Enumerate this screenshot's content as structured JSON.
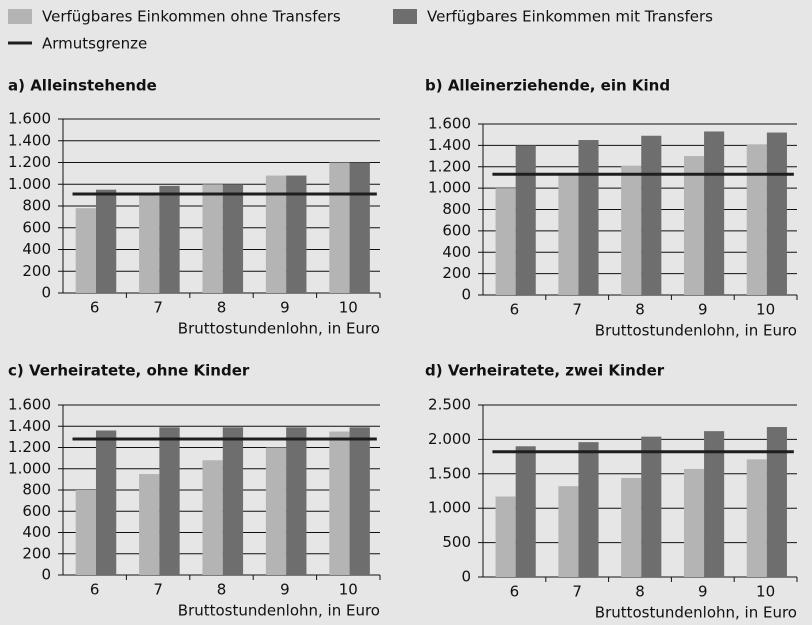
{
  "legend": [
    {
      "name": "Verfügbares Einkommen ohne Transfers",
      "color": "#b4b4b4"
    },
    {
      "name": "Verfügbares Einkommen mit Transfers",
      "color": "#6e6e6f"
    },
    {
      "name": "Armutsgrenze",
      "color": "#1e1e1e"
    }
  ],
  "chart_data": [
    {
      "type": "bar",
      "title": "a) Alleinstehende",
      "categories": [
        "6",
        "7",
        "8",
        "9",
        "10"
      ],
      "series": [
        {
          "color": "#b4b4b4",
          "values": [
            780,
            920,
            1000,
            1080,
            1200
          ]
        },
        {
          "color": "#6e6e6f",
          "values": [
            950,
            985,
            1000,
            1080,
            1200
          ]
        }
      ],
      "hline": 910,
      "hline_color": "#1e1e1e",
      "xlabel": "Bruttostundenlohn, in Euro",
      "ylim": [
        0,
        1600
      ],
      "yticks": [
        0,
        200,
        400,
        600,
        800,
        {
          "value": 1000,
          "label": "1.000"
        },
        {
          "value": 1200,
          "label": "1.200"
        },
        {
          "value": 1400,
          "label": "1.400"
        },
        {
          "value": 1600,
          "label": "1.600"
        }
      ],
      "grid": true
    },
    {
      "type": "bar",
      "title": "b) Alleinerziehende, ein Kind",
      "categories": [
        "6",
        "7",
        "8",
        "9",
        "10"
      ],
      "series": [
        {
          "color": "#b4b4b4",
          "values": [
            1000,
            1120,
            1210,
            1300,
            1410
          ]
        },
        {
          "color": "#6e6e6f",
          "values": [
            1400,
            1450,
            1490,
            1530,
            1520
          ]
        }
      ],
      "hline": 1130,
      "hline_color": "#1e1e1e",
      "xlabel": "Bruttostundenlohn, in Euro",
      "ylim": [
        0,
        1600
      ],
      "yticks": [
        0,
        200,
        400,
        600,
        800,
        {
          "value": 1000,
          "label": "1.000"
        },
        {
          "value": 1200,
          "label": "1.200"
        },
        {
          "value": 1400,
          "label": "1.400"
        },
        {
          "value": 1600,
          "label": "1.600"
        }
      ],
      "grid": true
    },
    {
      "type": "bar",
      "title": "c) Verheiratete, ohne Kinder",
      "categories": [
        "6",
        "7",
        "8",
        "9",
        "10"
      ],
      "series": [
        {
          "color": "#b4b4b4",
          "values": [
            800,
            950,
            1080,
            1200,
            1350
          ]
        },
        {
          "color": "#6e6e6f",
          "values": [
            1360,
            1390,
            1390,
            1390,
            1390
          ]
        }
      ],
      "hline": 1280,
      "hline_color": "#1e1e1e",
      "xlabel": "Bruttostundenlohn, in Euro",
      "ylim": [
        0,
        1600
      ],
      "yticks": [
        0,
        200,
        400,
        600,
        800,
        {
          "value": 1000,
          "label": "1.000"
        },
        {
          "value": 1200,
          "label": "1.200"
        },
        {
          "value": 1400,
          "label": "1.400"
        },
        {
          "value": 1600,
          "label": "1.600"
        }
      ],
      "grid": true
    },
    {
      "type": "bar",
      "title": "d) Verheiratete, zwei Kinder",
      "categories": [
        "6",
        "7",
        "8",
        "9",
        "10"
      ],
      "series": [
        {
          "color": "#b4b4b4",
          "values": [
            1170,
            1320,
            1440,
            1570,
            1710
          ]
        },
        {
          "color": "#6e6e6f",
          "values": [
            1900,
            1960,
            2040,
            2120,
            2180
          ]
        }
      ],
      "hline": 1820,
      "hline_color": "#1e1e1e",
      "xlabel": "Bruttostundenlohn, in Euro",
      "ylim": [
        0,
        2500
      ],
      "yticks": [
        0,
        500,
        {
          "value": 1000,
          "label": "1.000"
        },
        {
          "value": 1500,
          "label": "1.500"
        },
        {
          "value": 2000,
          "label": "2.000"
        },
        {
          "value": 2500,
          "label": "2.500"
        }
      ],
      "grid": true
    }
  ]
}
